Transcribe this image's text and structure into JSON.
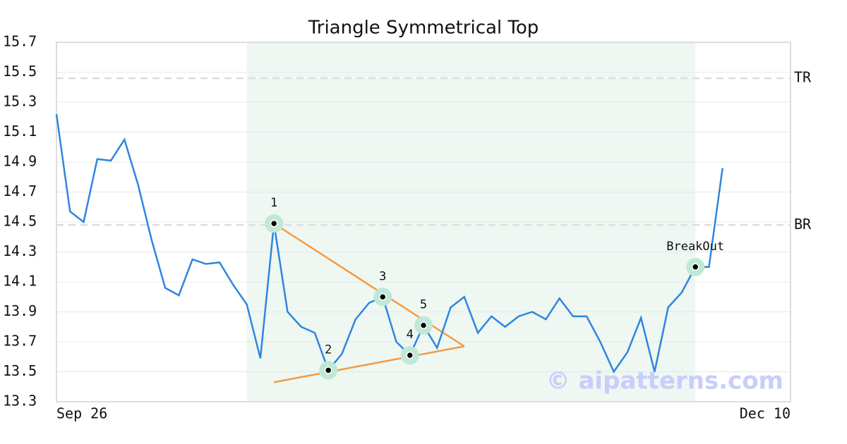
{
  "chart_data": {
    "type": "line",
    "title": "Triangle Symmetrical Top",
    "categories": [
      "Sep 26",
      null,
      null,
      null,
      null,
      null,
      null,
      null,
      null,
      null,
      null,
      null,
      null,
      null,
      null,
      null,
      null,
      null,
      null,
      null,
      null,
      null,
      null,
      null,
      null,
      null,
      null,
      null,
      null,
      null,
      null,
      null,
      null,
      null,
      null,
      null,
      null,
      null,
      null,
      null,
      null,
      null,
      null,
      null,
      null,
      null,
      null,
      null,
      null,
      null,
      null,
      null,
      null,
      null,
      "Dec 10"
    ],
    "series": [
      {
        "color": "#2e86de",
        "values": [
          15.22,
          14.57,
          14.5,
          14.92,
          14.91,
          15.05,
          14.75,
          14.38,
          14.06,
          14.01,
          14.25,
          14.22,
          14.23,
          14.08,
          13.95,
          13.59,
          14.49,
          13.9,
          13.8,
          13.76,
          13.51,
          13.62,
          13.85,
          13.96,
          14.0,
          13.7,
          13.61,
          13.81,
          13.66,
          13.93,
          14.0,
          13.76,
          13.87,
          13.8,
          13.87,
          13.9,
          13.85,
          13.99,
          13.87,
          13.87,
          13.7,
          13.5,
          13.63,
          13.86,
          13.5,
          13.93,
          14.03,
          14.2,
          14.2,
          14.86,
          null,
          null,
          null,
          null,
          null
        ]
      }
    ],
    "point_labels": [
      null,
      null,
      null,
      null,
      null,
      null,
      null,
      null,
      null,
      null,
      null,
      null,
      null,
      null,
      null,
      null,
      "1",
      null,
      null,
      null,
      "2",
      null,
      null,
      null,
      "3",
      null,
      "4",
      "5",
      null,
      null,
      null,
      null,
      null,
      null,
      null,
      null,
      null,
      null,
      null,
      null,
      null,
      null,
      null,
      null,
      null,
      null,
      null,
      "BreakOut",
      null,
      null,
      null,
      null,
      null,
      null,
      null
    ],
    "highlight": [
      14,
      47
    ],
    "highlight_color": "#eef7f2",
    "trendlines": [
      {
        "color": "#f59a42",
        "x": [
          16,
          30
        ],
        "values": [
          14.49,
          13.67
        ]
      },
      {
        "color": "#f59a42",
        "x": [
          16,
          30
        ],
        "values": [
          13.43,
          13.67
        ]
      }
    ],
    "levels": [
      {
        "label": "TR",
        "value": 15.46
      },
      {
        "label": "BR",
        "value": 14.48
      }
    ],
    "watermark": "© aipatterns.com",
    "ylim": [
      13.3,
      15.7
    ],
    "yticks": [
      15.7,
      15.5,
      15.3,
      15.1,
      14.9,
      14.7,
      14.5,
      14.3,
      14.1,
      13.9,
      13.7,
      13.5,
      13.3
    ],
    "grid": true
  }
}
